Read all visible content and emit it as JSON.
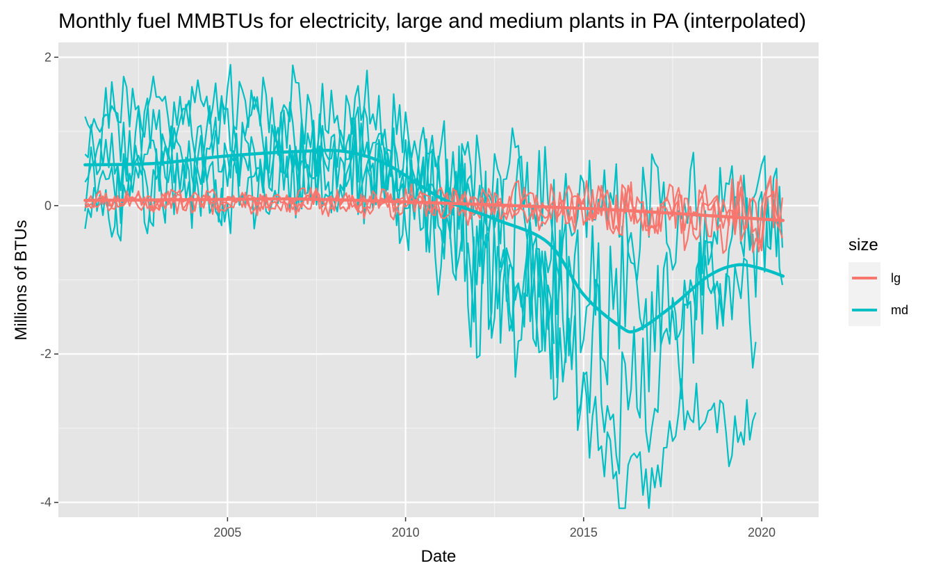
{
  "chart_data": {
    "type": "line",
    "title": "Monthly fuel MMBTUs for electricity, large and medium plants in PA (interpolated)",
    "xlabel": "Date",
    "ylabel": "Millions of BTUs",
    "xlim": [
      2000.25,
      2021.6
    ],
    "ylim": [
      -4.2,
      2.2
    ],
    "x_ticks": [
      2005,
      2010,
      2015,
      2020
    ],
    "x_tick_labels": [
      "2005",
      "2010",
      "2015",
      "2020"
    ],
    "y_ticks": [
      -4,
      -2,
      0,
      2
    ],
    "y_tick_labels": [
      "-4",
      "-2",
      "0",
      "2"
    ],
    "grid": true,
    "background": "#e5e5e5",
    "gridline_color": "#ffffff",
    "legend": {
      "title": "size",
      "placement": "right",
      "entries": [
        {
          "label": "lg",
          "color": "#f8766d"
        },
        {
          "label": "md",
          "color": "#00bfc4"
        }
      ]
    },
    "series": [
      {
        "name": "lg",
        "kind": "smooth",
        "color": "#f8766d",
        "x": [
          2001.0,
          2004.0,
          2007.0,
          2010.0,
          2013.0,
          2016.0,
          2019.0,
          2020.6
        ],
        "y": [
          0.07,
          0.08,
          0.09,
          0.05,
          0.0,
          -0.06,
          -0.15,
          -0.2
        ]
      },
      {
        "name": "md",
        "kind": "smooth",
        "color": "#00bfc4",
        "x": [
          2001.0,
          2003.0,
          2005.0,
          2007.0,
          2008.3,
          2009.5,
          2011.0,
          2012.5,
          2014.0,
          2015.0,
          2016.0,
          2016.5,
          2017.5,
          2018.5,
          2019.3,
          2020.0,
          2020.6
        ],
        "y": [
          0.55,
          0.57,
          0.67,
          0.73,
          0.73,
          0.55,
          0.1,
          -0.18,
          -0.5,
          -1.2,
          -1.62,
          -1.68,
          -1.35,
          -0.95,
          -0.8,
          -0.85,
          -0.95
        ]
      },
      {
        "name": "lg",
        "kind": "raw",
        "color": "#f8766d",
        "seed": 11,
        "x0": 2001.0,
        "x1": 2020.6,
        "mean": [
          [
            2001.0,
            0.08
          ],
          [
            2010.0,
            0.04
          ],
          [
            2016.0,
            -0.05
          ],
          [
            2020.6,
            -0.18
          ]
        ],
        "amp": [
          [
            2001.0,
            0.12
          ],
          [
            2011.0,
            0.15
          ],
          [
            2015.0,
            0.25
          ],
          [
            2020.6,
            0.35
          ]
        ]
      },
      {
        "name": "lg",
        "kind": "raw",
        "color": "#f8766d",
        "seed": 12,
        "x0": 2001.0,
        "x1": 2020.6,
        "mean": [
          [
            2001.0,
            0.06
          ],
          [
            2010.0,
            0.03
          ],
          [
            2016.0,
            -0.06
          ],
          [
            2020.6,
            -0.2
          ]
        ],
        "amp": [
          [
            2001.0,
            0.12
          ],
          [
            2011.0,
            0.15
          ],
          [
            2015.0,
            0.25
          ],
          [
            2020.6,
            0.5
          ]
        ]
      },
      {
        "name": "lg",
        "kind": "raw",
        "color": "#f8766d",
        "seed": 13,
        "x0": 2001.0,
        "x1": 2020.6,
        "mean": [
          [
            2001.0,
            0.05
          ],
          [
            2010.0,
            0.04
          ],
          [
            2016.0,
            -0.03
          ],
          [
            2020.6,
            -0.15
          ]
        ],
        "amp": [
          [
            2001.0,
            0.1
          ],
          [
            2011.0,
            0.2
          ],
          [
            2017.5,
            0.35
          ],
          [
            2020.6,
            0.4
          ]
        ]
      },
      {
        "name": "md",
        "kind": "raw",
        "color": "#00bfc4",
        "seed": 21,
        "x0": 2001.0,
        "x1": 2020.6,
        "mean": [
          [
            2001.0,
            1.3
          ],
          [
            2005.0,
            1.4
          ],
          [
            2009.0,
            1.2
          ],
          [
            2011.0,
            0.6
          ],
          [
            2013.0,
            0.1
          ],
          [
            2016.0,
            -0.1
          ],
          [
            2020.6,
            0.0
          ]
        ],
        "amp": [
          [
            2001.0,
            0.45
          ],
          [
            2010.0,
            0.5
          ],
          [
            2013.0,
            0.8
          ],
          [
            2020.6,
            0.6
          ]
        ]
      },
      {
        "name": "md",
        "kind": "raw",
        "color": "#00bfc4",
        "seed": 22,
        "x0": 2001.0,
        "x1": 2014.2,
        "mean": [
          [
            2001.0,
            0.9
          ],
          [
            2005.0,
            1.0
          ],
          [
            2009.0,
            0.7
          ],
          [
            2011.0,
            0.2
          ],
          [
            2012.0,
            -0.5
          ],
          [
            2013.0,
            -1.1
          ],
          [
            2014.2,
            -1.3
          ]
        ],
        "amp": [
          [
            2001.0,
            0.4
          ],
          [
            2010.0,
            0.5
          ],
          [
            2012.0,
            1.0
          ],
          [
            2014.2,
            0.5
          ]
        ]
      },
      {
        "name": "md",
        "kind": "raw",
        "color": "#00bfc4",
        "seed": 23,
        "x0": 2001.0,
        "x1": 2019.9,
        "mean": [
          [
            2001.0,
            0.6
          ],
          [
            2006.0,
            0.7
          ],
          [
            2009.0,
            0.6
          ],
          [
            2011.0,
            0.3
          ],
          [
            2013.0,
            -0.5
          ],
          [
            2015.0,
            -2.5
          ],
          [
            2016.0,
            -3.9
          ],
          [
            2017.0,
            -3.7
          ],
          [
            2018.0,
            -2.4
          ],
          [
            2019.0,
            -2.8
          ],
          [
            2019.9,
            -3.2
          ]
        ],
        "amp": [
          [
            2001.0,
            0.35
          ],
          [
            2010.0,
            0.5
          ],
          [
            2013.0,
            1.0
          ],
          [
            2015.0,
            0.6
          ],
          [
            2017.0,
            0.4
          ],
          [
            2019.9,
            0.6
          ]
        ]
      },
      {
        "name": "md",
        "kind": "raw",
        "color": "#00bfc4",
        "seed": 24,
        "x0": 2001.0,
        "x1": 2019.9,
        "mean": [
          [
            2001.0,
            0.1
          ],
          [
            2006.0,
            0.3
          ],
          [
            2009.0,
            0.4
          ],
          [
            2011.0,
            -0.3
          ],
          [
            2012.5,
            -0.9
          ],
          [
            2014.5,
            -1.6
          ],
          [
            2016.0,
            -2.7
          ],
          [
            2017.5,
            -2.0
          ],
          [
            2018.7,
            -1.0
          ],
          [
            2019.9,
            -1.6
          ]
        ],
        "amp": [
          [
            2001.0,
            0.5
          ],
          [
            2010.0,
            0.6
          ],
          [
            2012.0,
            1.2
          ],
          [
            2016.0,
            0.9
          ],
          [
            2019.9,
            0.8
          ]
        ]
      },
      {
        "name": "md",
        "kind": "raw",
        "color": "#00bfc4",
        "seed": 25,
        "x0": 2001.0,
        "x1": 2020.6,
        "mean": [
          [
            2001.0,
            0.2
          ],
          [
            2006.0,
            0.5
          ],
          [
            2009.0,
            0.4
          ],
          [
            2011.0,
            0.0
          ],
          [
            2013.0,
            -0.6
          ],
          [
            2015.0,
            -1.0
          ],
          [
            2017.0,
            -1.4
          ],
          [
            2019.0,
            -0.6
          ],
          [
            2020.6,
            -0.3
          ]
        ],
        "amp": [
          [
            2001.0,
            0.5
          ],
          [
            2010.0,
            0.6
          ],
          [
            2012.0,
            1.1
          ],
          [
            2016.0,
            1.0
          ],
          [
            2020.6,
            0.7
          ]
        ]
      }
    ]
  }
}
